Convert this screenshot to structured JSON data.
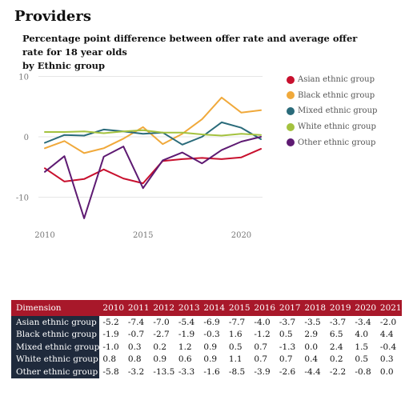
{
  "header": {
    "title": "Providers",
    "subtitle_line1": "Percentage point difference between offer rate and average offer rate for 18 year olds",
    "subtitle_line2": "by Ethnic group"
  },
  "chart_data": {
    "type": "line",
    "title": "Percentage point difference between offer rate and average offer rate for 18 year olds by Ethnic group",
    "x": [
      2010,
      2011,
      2012,
      2013,
      2014,
      2015,
      2016,
      2017,
      2018,
      2019,
      2020,
      2021
    ],
    "xticks": [
      2010,
      2015,
      2020
    ],
    "yticks": [
      10,
      0,
      -10
    ],
    "xlim": [
      2010,
      2021
    ],
    "ylim": [
      -14,
      10
    ],
    "grid": true,
    "legend_position": "right",
    "series": [
      {
        "name": "Asian ethnic group",
        "color": "#c8102e",
        "values": [
          -5.2,
          -7.4,
          -7.0,
          -5.4,
          -6.9,
          -7.7,
          -4.0,
          -3.7,
          -3.5,
          -3.7,
          -3.4,
          -2.0
        ]
      },
      {
        "name": "Black ethnic group",
        "color": "#f0a93b",
        "values": [
          -1.9,
          -0.7,
          -2.7,
          -1.9,
          -0.3,
          1.6,
          -1.2,
          0.5,
          2.9,
          6.5,
          4.0,
          4.4
        ]
      },
      {
        "name": "Mixed ethnic group",
        "color": "#2a6b7a",
        "values": [
          -1.0,
          0.3,
          0.2,
          1.2,
          0.9,
          0.5,
          0.7,
          -1.3,
          0.0,
          2.4,
          1.5,
          -0.4
        ]
      },
      {
        "name": "White ethnic group",
        "color": "#a4c23f",
        "values": [
          0.8,
          0.8,
          0.9,
          0.6,
          0.9,
          1.1,
          0.7,
          0.7,
          0.4,
          0.2,
          0.5,
          0.3
        ]
      },
      {
        "name": "Other ethnic group",
        "color": "#5e1a72",
        "values": [
          -5.8,
          -3.2,
          -13.5,
          -3.3,
          -1.6,
          -8.5,
          -3.9,
          -2.6,
          -4.4,
          -2.2,
          -0.8,
          0.0
        ]
      }
    ]
  },
  "table": {
    "header_label": "Dimension",
    "years": [
      "2010",
      "2011",
      "2012",
      "2013",
      "2014",
      "2015",
      "2016",
      "2017",
      "2018",
      "2019",
      "2020",
      "2021"
    ],
    "rows": [
      {
        "label": "Asian ethnic group",
        "cells": [
          "-5.2",
          "-7.4",
          "-7.0",
          "-5.4",
          "-6.9",
          "-7.7",
          "-4.0",
          "-3.7",
          "-3.5",
          "-3.7",
          "-3.4",
          "-2.0"
        ]
      },
      {
        "label": "Black ethnic group",
        "cells": [
          "-1.9",
          "-0.7",
          "-2.7",
          "-1.9",
          "-0.3",
          "1.6",
          "-1.2",
          "0.5",
          "2.9",
          "6.5",
          "4.0",
          "4.4"
        ]
      },
      {
        "label": "Mixed ethnic group",
        "cells": [
          "-1.0",
          "0.3",
          "0.2",
          "1.2",
          "0.9",
          "0.5",
          "0.7",
          "-1.3",
          "0.0",
          "2.4",
          "1.5",
          "-0.4"
        ]
      },
      {
        "label": "White ethnic group",
        "cells": [
          "0.8",
          "0.8",
          "0.9",
          "0.6",
          "0.9",
          "1.1",
          "0.7",
          "0.7",
          "0.4",
          "0.2",
          "0.5",
          "0.3"
        ]
      },
      {
        "label": "Other ethnic group",
        "cells": [
          "-5.8",
          "-3.2",
          "-13.5",
          "-3.3",
          "-1.6",
          "-8.5",
          "-3.9",
          "-2.6",
          "-4.4",
          "-2.2",
          "-0.8",
          "0.0"
        ]
      }
    ]
  }
}
